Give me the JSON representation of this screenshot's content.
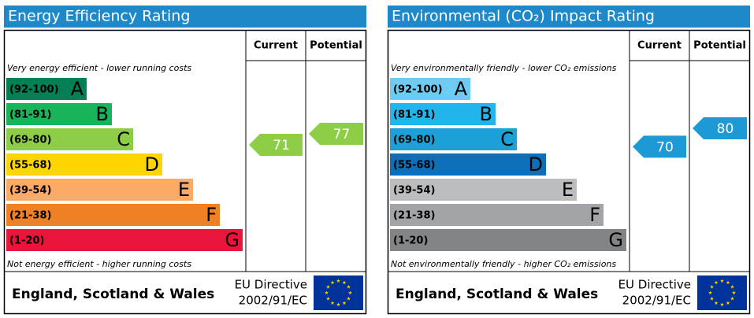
{
  "chart_data": [
    {
      "type": "rating",
      "title": "Energy Efficiency Rating",
      "columns": [
        "Current",
        "Potential"
      ],
      "top_note": "Very energy efficient - lower running costs",
      "bottom_note": "Not energy efficient - higher running costs",
      "bands": [
        {
          "range": "(92-100)",
          "letter": "A",
          "color": "#008054"
        },
        {
          "range": "(81-91)",
          "letter": "B",
          "color": "#19b459"
        },
        {
          "range": "(69-80)",
          "letter": "C",
          "color": "#8dce46"
        },
        {
          "range": "(55-68)",
          "letter": "D",
          "color": "#ffd500"
        },
        {
          "range": "(39-54)",
          "letter": "E",
          "color": "#fcaa65"
        },
        {
          "range": "(21-38)",
          "letter": "F",
          "color": "#ef8023"
        },
        {
          "range": "(1-20)",
          "letter": "G",
          "color": "#e9153b"
        }
      ],
      "current": 71,
      "current_color": "#8dce46",
      "potential": 77,
      "potential_color": "#8dce46",
      "region": "England, Scotland & Wales",
      "directive": [
        "EU Directive",
        "2002/91/EC"
      ]
    },
    {
      "type": "rating",
      "title": "Environmental (CO₂) Impact Rating",
      "columns": [
        "Current",
        "Potential"
      ],
      "top_note": "Very environmentally friendly - lower CO₂ emissions",
      "bottom_note": "Not environmentally friendly - higher CO₂ emissions",
      "bands": [
        {
          "range": "(92-100)",
          "letter": "A",
          "color": "#6dccf5"
        },
        {
          "range": "(81-91)",
          "letter": "B",
          "color": "#22b5eb"
        },
        {
          "range": "(69-80)",
          "letter": "C",
          "color": "#1ca0d8"
        },
        {
          "range": "(55-68)",
          "letter": "D",
          "color": "#0c6fb8"
        },
        {
          "range": "(39-54)",
          "letter": "E",
          "color": "#bbbdbf"
        },
        {
          "range": "(21-38)",
          "letter": "F",
          "color": "#a2a4a7"
        },
        {
          "range": "(1-20)",
          "letter": "G",
          "color": "#838486"
        }
      ],
      "current": 70,
      "current_color": "#1c9ad6",
      "potential": 80,
      "potential_color": "#1c9ad6",
      "region": "England, Scotland & Wales",
      "directive": [
        "EU Directive",
        "2002/91/EC"
      ]
    }
  ]
}
